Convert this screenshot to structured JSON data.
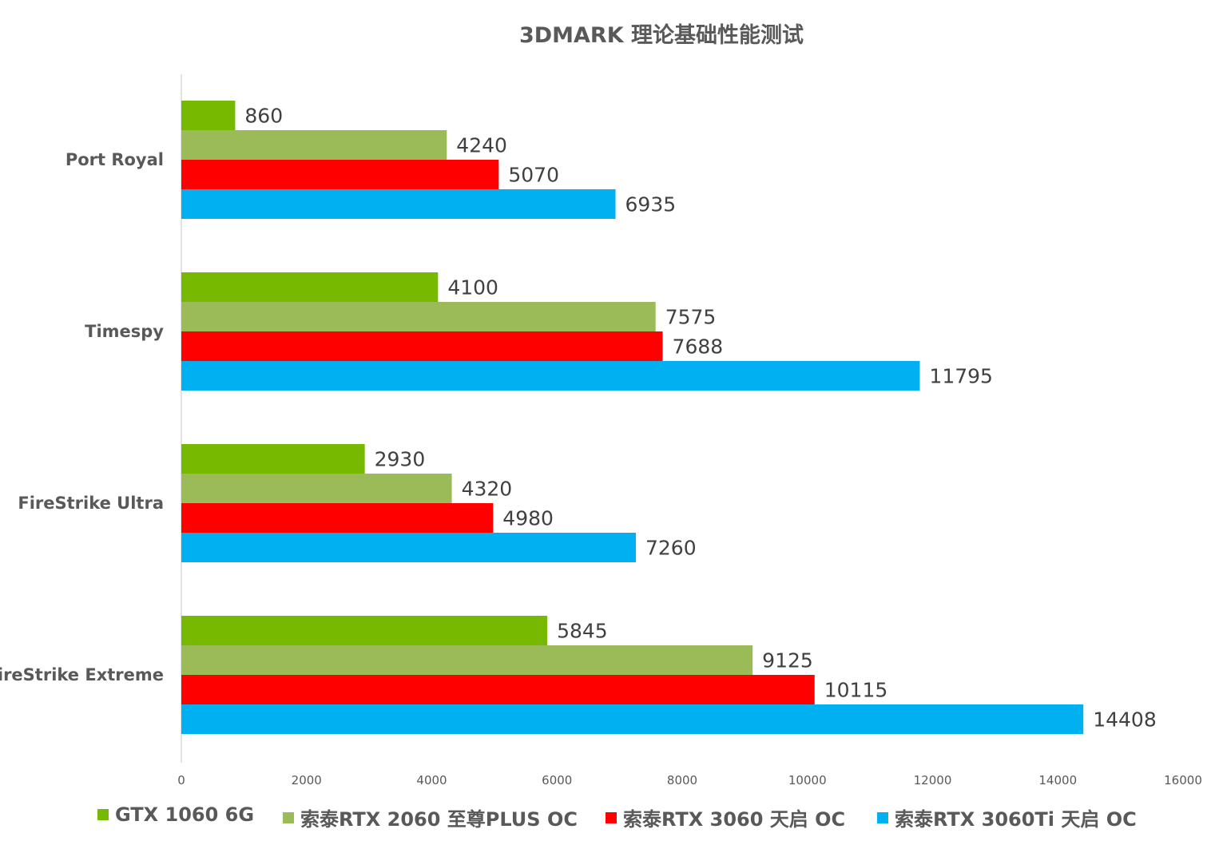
{
  "chart_data": {
    "type": "bar",
    "orientation": "horizontal",
    "title": "3DMARK 理论基础性能测试",
    "categories": [
      "Port Royal",
      "Timespy",
      "FireStrike Ultra",
      "FireStrike Extreme"
    ],
    "series": [
      {
        "name": "GTX 1060 6G",
        "color": "#76b900",
        "values": [
          860,
          4100,
          2930,
          5845
        ]
      },
      {
        "name": "索泰RTX 2060 至尊PLUS OC",
        "color": "#9bbb59",
        "values": [
          4240,
          7575,
          4320,
          9125
        ]
      },
      {
        "name": "索泰RTX 3060 天启 OC",
        "color": "#ff0000",
        "values": [
          5070,
          7688,
          4980,
          10115
        ]
      },
      {
        "name": "索泰RTX 3060Ti 天启 OC",
        "color": "#00b0f0",
        "values": [
          6935,
          11795,
          7260,
          14408
        ]
      }
    ],
    "xlim": [
      0,
      16000
    ],
    "xticks": [
      "0",
      "2000",
      "4000",
      "6000",
      "8000",
      "10000",
      "12000",
      "14000",
      "16000"
    ],
    "xlabel": "",
    "ylabel": "",
    "grid": false,
    "data_labels": true,
    "legend_position": "bottom"
  }
}
